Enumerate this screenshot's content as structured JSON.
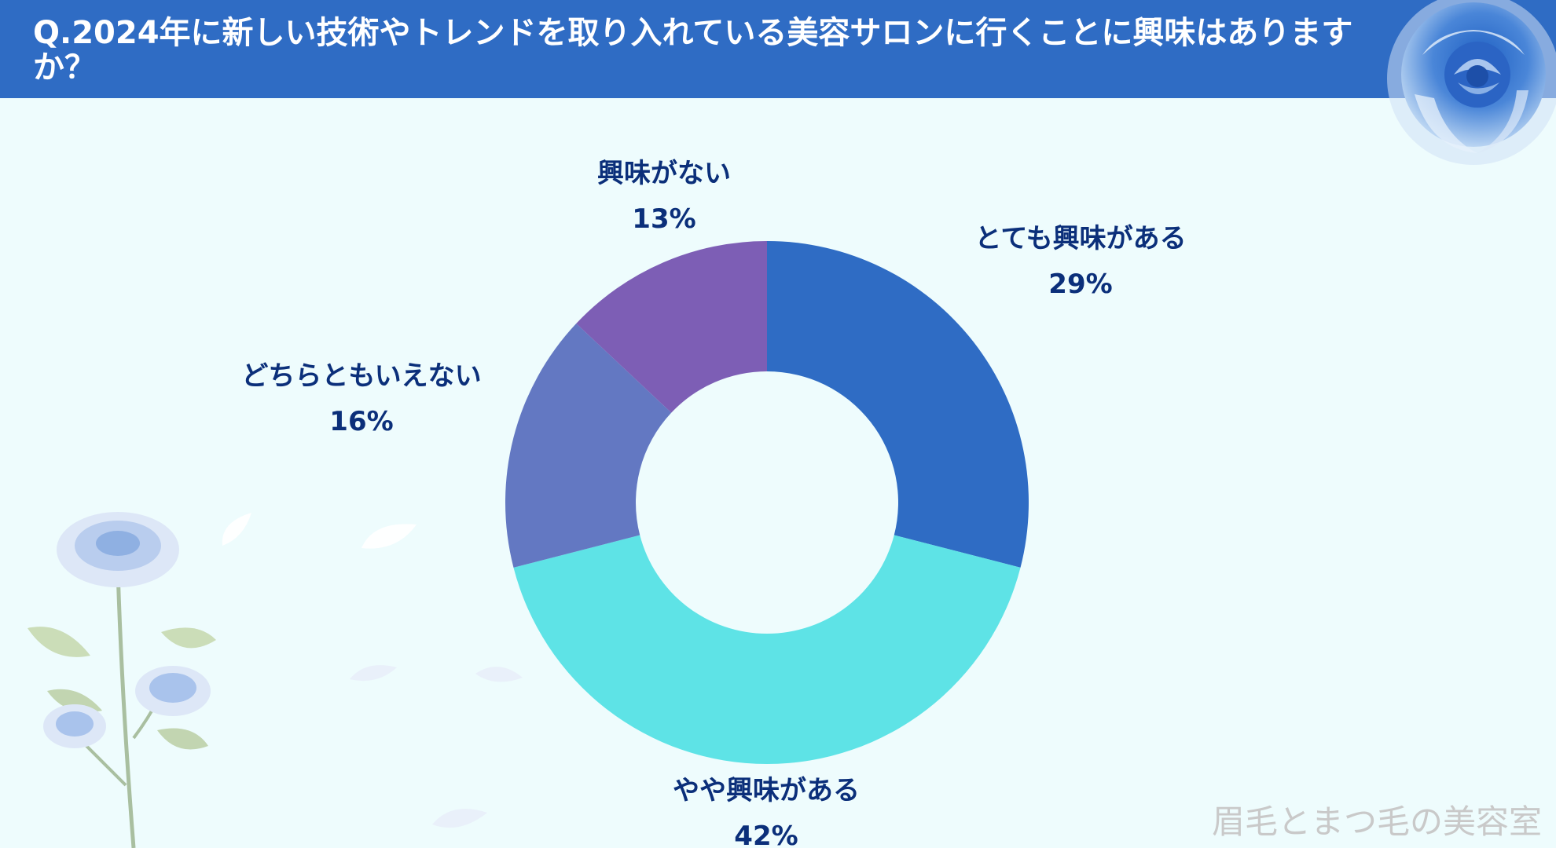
{
  "header": {
    "title": "Q.2024年に新しい技術やトレンドを取り入れている美容サロンに行くことに興味はありますか？"
  },
  "chart_data": {
    "type": "pie",
    "categories": [
      "とても興味がある",
      "やや興味がある",
      "どちらともいえない",
      "興味がない"
    ],
    "values": [
      29,
      42,
      16,
      13
    ],
    "unit": "%",
    "value_labels": [
      "29%",
      "42%",
      "16%",
      "13%"
    ],
    "colors": [
      "#2f6cc4",
      "#5ee3e6",
      "#6378c2",
      "#7d5eb5"
    ],
    "donut": true
  },
  "watermark": {
    "text": "眉毛とまつ毛の美容室"
  },
  "icons": {
    "corner": "blue-rose-icon",
    "bottom": "blue-rose-branch-icon"
  }
}
